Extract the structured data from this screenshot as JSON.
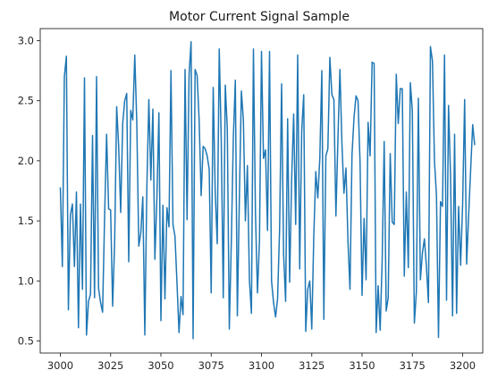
{
  "chart_data": {
    "type": "line",
    "title": "Motor Current Signal Sample",
    "xlabel": "",
    "ylabel": "",
    "xlim": [
      2990,
      3210
    ],
    "ylim": [
      0.4,
      3.1
    ],
    "x_ticks": [
      3000,
      3025,
      3050,
      3075,
      3100,
      3125,
      3150,
      3175,
      3200
    ],
    "y_ticks": [
      0.5,
      1.0,
      1.5,
      2.0,
      2.5,
      3.0
    ],
    "x_tick_labels": [
      "3000",
      "3025",
      "3050",
      "3075",
      "3100",
      "3125",
      "3150",
      "3175",
      "3200"
    ],
    "y_tick_labels": [
      "0.5",
      "1.0",
      "1.5",
      "2.0",
      "2.5",
      "3.0"
    ],
    "grid": false,
    "line_color": "#1f77b4",
    "x_start": 3000,
    "x_step": 1,
    "series": [
      {
        "values": [
          1.78,
          1.12,
          2.7,
          2.87,
          0.76,
          1.55,
          1.64,
          1.12,
          1.74,
          0.61,
          1.64,
          0.93,
          2.69,
          0.55,
          0.83,
          0.89,
          2.21,
          0.86,
          2.7,
          0.94,
          0.82,
          0.74,
          1.53,
          2.22,
          1.6,
          1.59,
          0.79,
          1.32,
          2.45,
          2.12,
          1.57,
          2.31,
          2.5,
          2.56,
          1.16,
          2.42,
          2.34,
          2.88,
          2.32,
          1.29,
          1.4,
          1.7,
          0.55,
          1.77,
          2.51,
          1.84,
          2.43,
          1.18,
          1.69,
          2.4,
          0.67,
          1.63,
          0.85,
          1.61,
          1.45,
          2.75,
          1.47,
          1.37,
          0.98,
          0.57,
          0.87,
          0.72,
          2.76,
          1.51,
          2.72,
          2.99,
          0.52,
          2.76,
          2.71,
          2.34,
          1.71,
          2.12,
          2.1,
          2.04,
          1.93,
          0.9,
          2.61,
          1.74,
          1.31,
          2.93,
          2.17,
          0.86,
          2.63,
          2.27,
          0.6,
          1.32,
          2.19,
          2.67,
          0.71,
          1.68,
          2.58,
          2.34,
          1.5,
          1.96,
          1.01,
          0.73,
          2.93,
          1.57,
          0.9,
          1.33,
          2.91,
          2.02,
          2.09,
          1.42,
          2.91,
          1.0,
          0.82,
          0.7,
          0.85,
          1.43,
          2.64,
          1.22,
          0.83,
          2.35,
          0.99,
          1.85,
          2.39,
          1.47,
          2.88,
          1.1,
          2.25,
          2.55,
          0.58,
          0.93,
          1.0,
          0.6,
          1.37,
          1.91,
          1.69,
          2.02,
          2.75,
          0.68,
          2.04,
          2.1,
          2.86,
          2.55,
          2.51,
          1.54,
          2.18,
          2.76,
          2.14,
          1.73,
          1.94,
          1.33,
          0.93,
          2.05,
          2.36,
          2.54,
          2.5,
          1.99,
          0.88,
          1.52,
          1.01,
          2.32,
          2.04,
          2.82,
          2.81,
          0.57,
          0.96,
          0.59,
          1.17,
          2.16,
          0.75,
          0.86,
          2.06,
          1.49,
          1.47,
          2.72,
          2.31,
          2.6,
          2.6,
          1.04,
          1.74,
          1.11,
          2.65,
          2.42,
          0.65,
          0.91,
          2.52,
          1.01,
          1.23,
          1.35,
          1.12,
          0.82,
          2.95,
          2.83,
          2.0,
          1.71,
          0.53,
          1.66,
          1.62,
          2.88,
          0.84,
          2.46,
          1.87,
          0.71,
          2.22,
          0.73,
          1.62,
          1.13,
          1.64,
          2.51,
          1.14,
          1.55,
          1.93,
          2.3,
          2.13
        ]
      }
    ]
  }
}
